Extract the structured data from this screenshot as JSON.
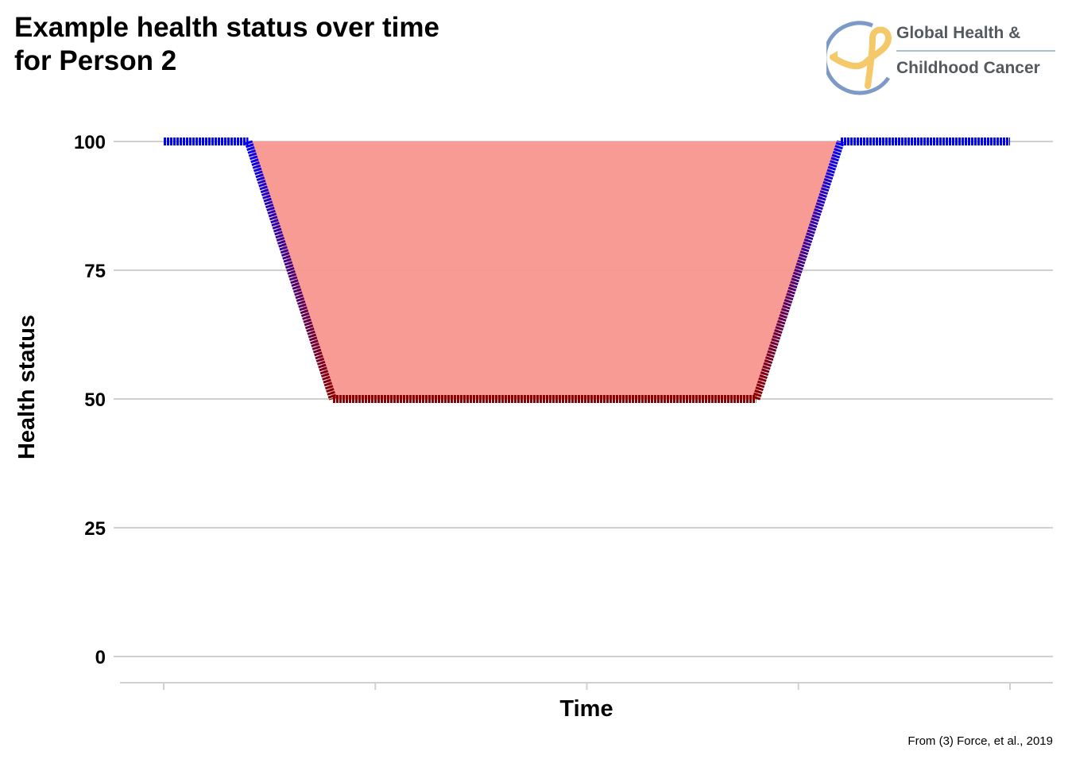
{
  "title_line1": "Example health status over time",
  "title_line2": "for Person 2",
  "logo": {
    "line1": "Global Health &",
    "line2": "Childhood Cancer"
  },
  "caption": "From (3) Force, et al., 2019",
  "colors": {
    "fill": "#f8968f",
    "healthy": "#0000ff",
    "sick": "#8b0000",
    "grid": "#d0d0d0"
  },
  "chart_data": {
    "type": "line",
    "title": "Example health status over time for Person 2",
    "xlabel": "Time",
    "ylabel": "Health status",
    "ylim": [
      0,
      100
    ],
    "yticks": [
      0,
      25,
      50,
      75,
      100
    ],
    "xlim": [
      0,
      10
    ],
    "xticks_unlabeled": [
      0,
      2.5,
      5,
      7.5,
      10
    ],
    "series": [
      {
        "x": [
          0,
          1,
          2,
          7,
          8,
          10
        ],
        "values": [
          100,
          100,
          50,
          50,
          100,
          100
        ]
      }
    ],
    "shaded_area": {
      "x": [
        1,
        2,
        7,
        8
      ],
      "upper": 100,
      "lower": [
        100,
        50,
        50,
        100
      ]
    },
    "grid": true
  }
}
